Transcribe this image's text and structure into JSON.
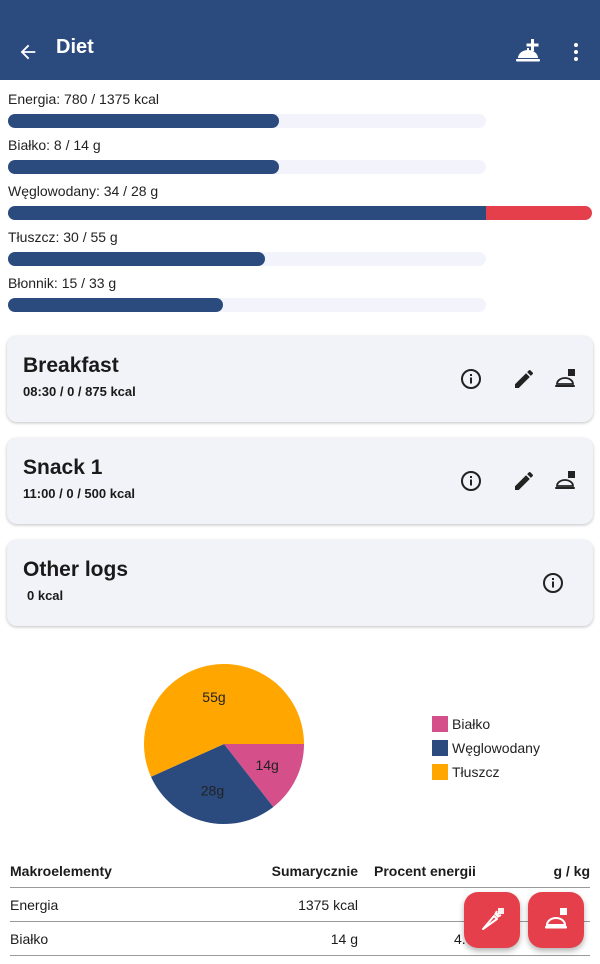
{
  "header": {
    "title": "Diet",
    "back_icon": "arrow-left-icon",
    "add_meal_icon": "add-meal-cloche-icon",
    "menu_icon": "more-vertical-icon"
  },
  "nutrients": [
    {
      "label": "Energia: 780 / 1375 kcal",
      "fraction": 0.567
    },
    {
      "label": "Białko: 8 / 14 g",
      "fraction": 0.571
    },
    {
      "label": "Węglowodany: 34 / 28 g",
      "fraction": 1.214,
      "over": true
    },
    {
      "label": "Tłuszcz: 30 / 55 g",
      "fraction": 0.545
    },
    {
      "label": "Błonnik: 15 / 33 g",
      "fraction": 0.455
    }
  ],
  "meals": [
    {
      "title": "Breakfast",
      "subtitle": "08:30 /  0 / 875 kcal"
    },
    {
      "title": "Snack 1",
      "subtitle": "11:00 /  0 / 500 kcal"
    }
  ],
  "other_logs": {
    "title": "Other logs",
    "subtitle": "0 kcal"
  },
  "chart_data": {
    "type": "pie",
    "slices": [
      {
        "name": "Białko",
        "value": 14,
        "label": "14g",
        "color": "#d54f8a"
      },
      {
        "name": "Węglowodany",
        "value": 28,
        "label": "28g",
        "color": "#2b4a7e"
      },
      {
        "name": "Tłuszcz",
        "value": 55,
        "label": "55g",
        "color": "#ffa600"
      }
    ],
    "legend": [
      "Białko",
      "Węglowodany",
      "Tłuszcz"
    ],
    "legend_position": "right"
  },
  "table": {
    "headers": [
      "Makroelementy",
      "Sumarycznie",
      "Procent energii",
      "g / kg"
    ],
    "rows": [
      [
        "Energia",
        "1375 kcal",
        "",
        ""
      ],
      [
        "Białko",
        "14 g",
        "4.",
        ""
      ]
    ]
  },
  "colors": {
    "primary": "#2b4a7e",
    "accent": "#e53f4b",
    "track": "#f3f4fb"
  },
  "fabs": [
    {
      "icon": "food-carrot-icon"
    },
    {
      "icon": "meal-cloche-icon"
    }
  ]
}
